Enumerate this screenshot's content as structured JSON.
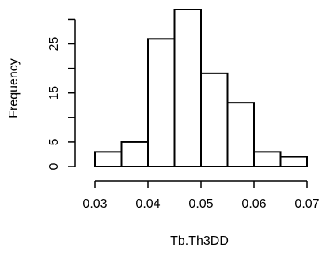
{
  "chart_data": {
    "type": "bar",
    "title": "",
    "xlabel": "Tb.Th3DD",
    "ylabel": "Frequency",
    "bin_edges": [
      0.03,
      0.035,
      0.04,
      0.045,
      0.05,
      0.055,
      0.06,
      0.065,
      0.07
    ],
    "values": [
      3,
      5,
      26,
      32,
      19,
      13,
      3,
      2
    ],
    "xlim": [
      0.03,
      0.07
    ],
    "ylim": [
      0,
      32
    ],
    "x_ticks": [
      0.03,
      0.04,
      0.05,
      0.06,
      0.07
    ],
    "x_tick_labels": [
      "0.03",
      "0.04",
      "0.05",
      "0.06",
      "0.07"
    ],
    "y_ticks": [
      0,
      5,
      10,
      15,
      20,
      25,
      30
    ],
    "y_tick_labels": [
      "0",
      "5",
      "",
      "15",
      "",
      "25",
      ""
    ],
    "grid": false,
    "legend": "none",
    "colors": {
      "bar_fill": "#ffffff",
      "bar_stroke": "#000000"
    }
  }
}
